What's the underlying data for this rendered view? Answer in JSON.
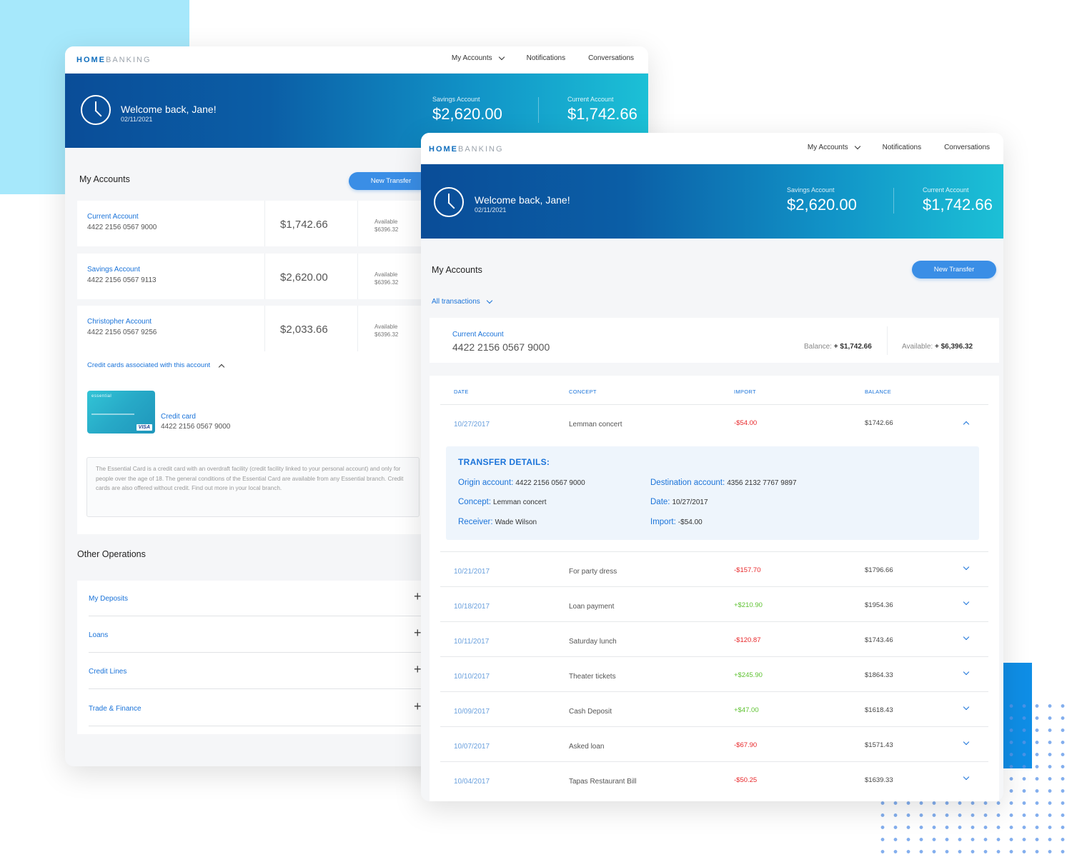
{
  "app": {
    "logo_a": "HOME",
    "logo_b": "BANKING"
  },
  "nav": {
    "my_accounts": "My Accounts",
    "notifications": "Notifications",
    "conversations": "Conversations"
  },
  "hero": {
    "welcome": "Welcome back, Jane!",
    "date": "02/11/2021",
    "savings_label": "Savings Account",
    "savings_amount": "$2,620.00",
    "current_label": "Current Account",
    "current_amount": "$1,742.66"
  },
  "my_accounts": {
    "title": "My Accounts",
    "new_transfer": "New Transfer",
    "accounts": [
      {
        "name": "Current Account",
        "number": "4422 2156 0567 9000",
        "balance": "$1,742.66",
        "available_label": "Available",
        "available": "$6396.32"
      },
      {
        "name": "Savings Account",
        "number": "4422 2156 0567 9113",
        "balance": "$2,620.00",
        "available_label": "Available",
        "available": "$6396.32"
      },
      {
        "name": "Christopher Account",
        "number": "4422 2156 0567 9256",
        "balance": "$2,033.66",
        "available_label": "Available",
        "available": "$6396.32"
      }
    ],
    "credit_cards_link": "Credit cards associated with this account",
    "card": {
      "brand": "essential",
      "network": "VISA",
      "name": "Credit card",
      "number": "4422 2156 0567 9000"
    },
    "description": "The Essential Card is a credit card with an overdraft facility (credit facility linked to your personal account) and only for people over the age of 18. The general conditions of the Essential Card are available from any Essential branch. Credit cards are also offered without credit. Find out more in your local branch."
  },
  "other_operations": {
    "title": "Other Operations",
    "items": [
      "My Deposits",
      "Loans",
      "Credit Lines",
      "Trade & Finance"
    ]
  },
  "transactions_view": {
    "filter": "All transactions",
    "account_name": "Current Account",
    "account_number": "4422 2156 0567 9000",
    "balance_label": "Balance:",
    "balance_value": "+ $1,742.66",
    "available_label": "Available:",
    "available_value": "+ $6,396.32",
    "headers": {
      "date": "DATE",
      "concept": "CONCEPT",
      "import": "IMPORT",
      "balance": "BALANCE"
    },
    "rows": [
      {
        "date": "10/27/2017",
        "concept": "Lemman concert",
        "import": "-$54.00",
        "balance": "$1742.66"
      },
      {
        "date": "10/21/2017",
        "concept": "For party dress",
        "import": "-$157.70",
        "balance": "$1796.66"
      },
      {
        "date": "10/18/2017",
        "concept": "Loan payment",
        "import": "+$210.90",
        "balance": "$1954.36"
      },
      {
        "date": "10/11/2017",
        "concept": "Saturday lunch",
        "import": "-$120.87",
        "balance": "$1743.46"
      },
      {
        "date": "10/10/2017",
        "concept": "Theater tickets",
        "import": "+$245.90",
        "balance": "$1864.33"
      },
      {
        "date": "10/09/2017",
        "concept": "Cash Deposit",
        "import": "+$47.00",
        "balance": "$1618.43"
      },
      {
        "date": "10/07/2017",
        "concept": "Asked loan",
        "import": "-$67.90",
        "balance": "$1571.43"
      },
      {
        "date": "10/04/2017",
        "concept": "Tapas Restaurant Bill",
        "import": "-$50.25",
        "balance": "$1639.33"
      }
    ],
    "details": {
      "title": "TRANSFER DETAILS:",
      "origin_label": "Origin account:",
      "origin": "4422 2156 0567 9000",
      "destination_label": "Destination account:",
      "destination": "4356 2132 7767 9897",
      "concept_label": "Concept:",
      "concept": "Lemman concert",
      "date_label": "Date:",
      "date": "10/27/2017",
      "receiver_label": "Receiver:",
      "receiver": "Wade Wilson",
      "import_label": "Import:",
      "import": "-$54.00"
    }
  },
  "colors": {
    "accent": "#1a73d9",
    "negative": "#e8282b",
    "positive": "#5dc230",
    "hero_start": "#0a4d98",
    "hero_end": "#1cc0d6"
  }
}
